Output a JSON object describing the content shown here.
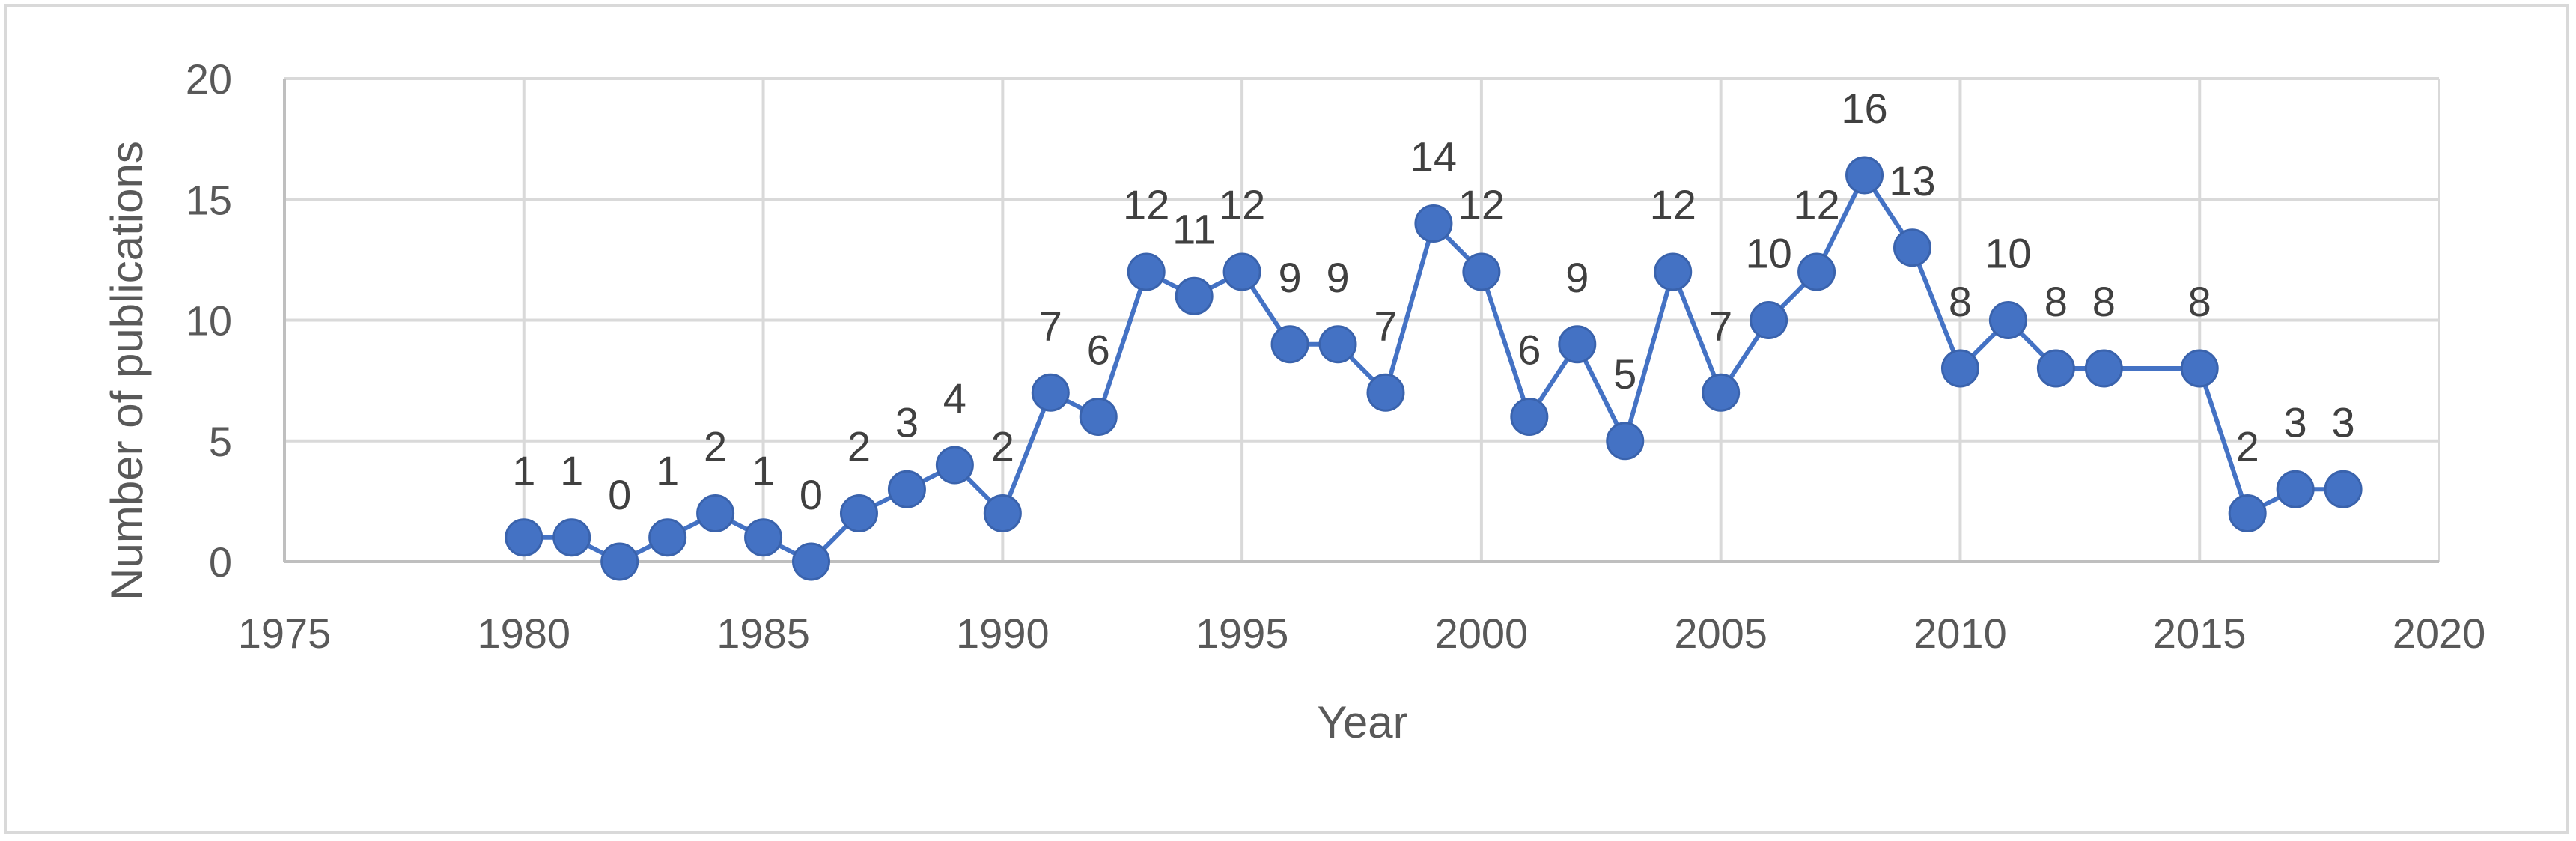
{
  "chart_data": {
    "type": "scatter",
    "title": "",
    "xlabel": "Year",
    "ylabel": "Number of publications",
    "xlim": [
      1975,
      2020
    ],
    "ylim": [
      0,
      20
    ],
    "x_ticks": [
      1975,
      1980,
      1985,
      1990,
      1995,
      2000,
      2005,
      2010,
      2015,
      2020
    ],
    "y_ticks": [
      0,
      5,
      10,
      15,
      20
    ],
    "grid": true,
    "legend": "none",
    "markers": "circle",
    "connected": true,
    "color": "#4472C4",
    "series": [
      {
        "x": [
          1980,
          1981,
          1982,
          1983,
          1984,
          1985,
          1986,
          1987,
          1988,
          1989,
          1990,
          1991,
          1992,
          1993,
          1994,
          1995,
          1996,
          1997,
          1998,
          1999,
          2000,
          2001,
          2002,
          2003,
          2004,
          2005,
          2006,
          2007,
          2008,
          2009,
          2010,
          2011,
          2012,
          2013,
          2015,
          2016,
          2017,
          2018
        ],
        "y": [
          1,
          1,
          0,
          1,
          2,
          1,
          0,
          2,
          3,
          4,
          2,
          7,
          6,
          12,
          11,
          12,
          9,
          9,
          7,
          14,
          12,
          6,
          9,
          5,
          12,
          7,
          10,
          12,
          16,
          13,
          8,
          10,
          8,
          8,
          8,
          2,
          3,
          3
        ]
      }
    ]
  }
}
